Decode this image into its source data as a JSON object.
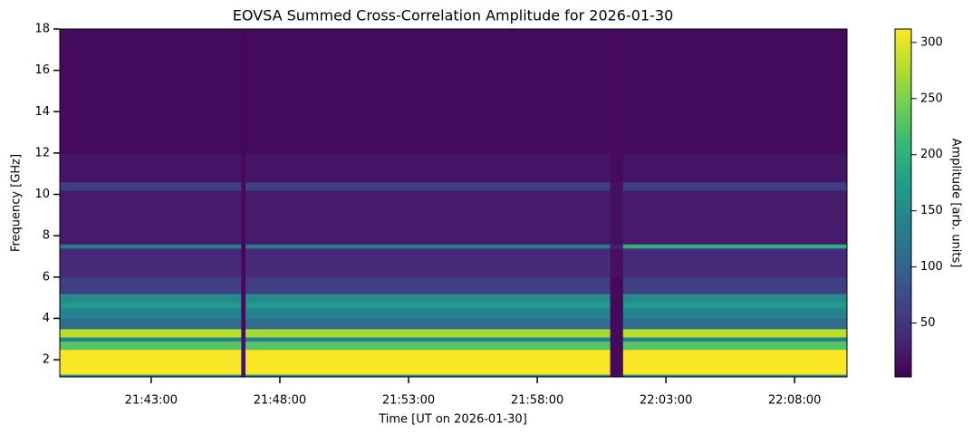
{
  "chart_data": {
    "type": "heatmap",
    "title": "EOVSA Summed Cross-Correlation Amplitude for 2026-01-30",
    "xlabel": "Time [UT on 2026-01-30]",
    "ylabel": "Frequency [GHz]",
    "colorbar_label": "Amplitude [arb. units]",
    "colormap": "viridis",
    "x_edges": [
      "21:39:27",
      "21:46:30",
      "21:46:40",
      "22:00:50",
      "22:01:20",
      "22:10:02"
    ],
    "y_edges": [
      1.17,
      1.3,
      2.5,
      2.9,
      3.1,
      3.5,
      4.0,
      4.5,
      4.8,
      5.2,
      6.0,
      7.4,
      7.6,
      10.2,
      10.6,
      12,
      18
    ],
    "z": [
      [
        150,
        20,
        150,
        10,
        150
      ],
      [
        310,
        20,
        310,
        10,
        310
      ],
      [
        230,
        20,
        230,
        10,
        230
      ],
      [
        140,
        15,
        140,
        10,
        140
      ],
      [
        280,
        15,
        270,
        10,
        280
      ],
      [
        110,
        12,
        110,
        10,
        110
      ],
      [
        140,
        12,
        140,
        10,
        140
      ],
      [
        170,
        12,
        170,
        10,
        170
      ],
      [
        150,
        12,
        150,
        10,
        150
      ],
      [
        60,
        10,
        60,
        10,
        60
      ],
      [
        40,
        10,
        40,
        15,
        40
      ],
      [
        130,
        10,
        130,
        30,
        200
      ],
      [
        25,
        10,
        25,
        15,
        25
      ],
      [
        60,
        10,
        60,
        15,
        60
      ],
      [
        20,
        10,
        20,
        12,
        20
      ],
      [
        12,
        8,
        12,
        10,
        12
      ]
    ],
    "xlim": [
      "21:39:27",
      "22:10:02"
    ],
    "xticks": [
      "21:43:00",
      "21:48:00",
      "21:53:00",
      "21:58:00",
      "22:03:00",
      "22:08:00"
    ],
    "ylim": [
      1.17,
      18
    ],
    "yticks": [
      2,
      4,
      6,
      8,
      10,
      12,
      14,
      16,
      18
    ],
    "clim": [
      2,
      312
    ],
    "cticks": [
      50,
      100,
      150,
      200,
      250,
      300
    ]
  }
}
